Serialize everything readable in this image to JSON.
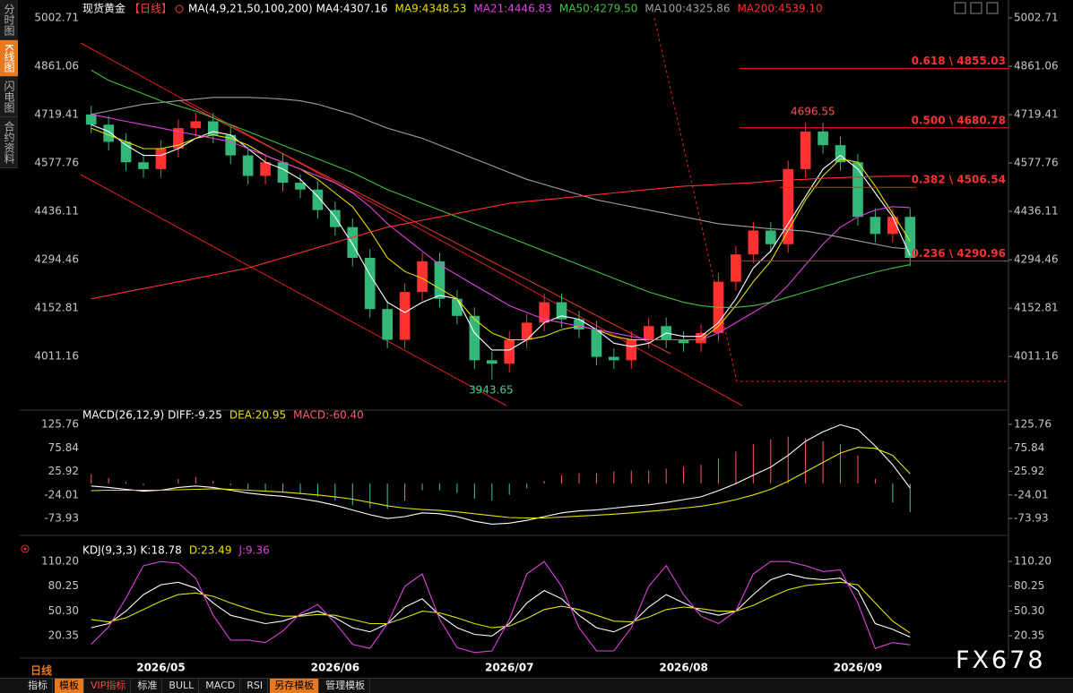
{
  "ui": {
    "tabs": [
      "分时图",
      "K线图",
      "闪电图",
      "合约资料"
    ],
    "period_label": "日线",
    "toolbar": [
      "指标",
      "模板",
      "VIP指标",
      "标准",
      "BULL",
      "MACD",
      "RSI",
      "另存模板",
      "管理模板"
    ],
    "watermark": "FX678"
  },
  "chart_data": [
    {
      "type": "candlestick",
      "title": "现货黄金",
      "period": "【日线】",
      "indicator": "MA(4,9,21,50,100,200)",
      "categories": [
        null,
        null,
        null,
        null,
        "2026/05",
        null,
        null,
        null,
        null,
        null,
        null,
        null,
        null,
        null,
        "2026/06",
        null,
        null,
        null,
        null,
        null,
        null,
        null,
        null,
        null,
        "2026/07",
        null,
        null,
        null,
        null,
        null,
        null,
        null,
        null,
        null,
        "2026/08",
        null,
        null,
        null,
        null,
        null,
        null,
        null,
        null,
        null,
        "2026/09",
        null,
        null,
        null
      ],
      "open": [
        4720,
        4690,
        4640,
        4580,
        4560,
        4620,
        4680,
        4700,
        4660,
        4600,
        4540,
        4580,
        4520,
        4500,
        4440,
        4390,
        4300,
        4150,
        4060,
        4200,
        4290,
        4180,
        4130,
        4000,
        3990,
        4060,
        4110,
        4170,
        4120,
        4090,
        4010,
        4000,
        4060,
        4100,
        4060,
        4050,
        4080,
        4230,
        4310,
        4380,
        4340,
        4560,
        4670,
        4630,
        4580,
        4420,
        4370,
        4420
      ],
      "high": [
        4745,
        4715,
        4665,
        4605,
        4645,
        4705,
        4725,
        4725,
        4685,
        4625,
        4605,
        4605,
        4545,
        4525,
        4465,
        4415,
        4325,
        4175,
        4225,
        4315,
        4315,
        4205,
        4155,
        4025,
        4085,
        4135,
        4195,
        4195,
        4145,
        4115,
        4035,
        4085,
        4125,
        4125,
        4085,
        4105,
        4255,
        4335,
        4405,
        4405,
        4585,
        4696.55,
        4695,
        4655,
        4605,
        4445,
        4445,
        4445
      ],
      "low": [
        4665,
        4615,
        4555,
        4535,
        4535,
        4595,
        4655,
        4635,
        4575,
        4515,
        4515,
        4495,
        4475,
        4415,
        4365,
        4275,
        4125,
        4035,
        4035,
        4175,
        4155,
        4105,
        3975,
        3943.65,
        3965,
        4035,
        4085,
        4095,
        4065,
        3985,
        3975,
        3975,
        4035,
        4035,
        4025,
        4025,
        4055,
        4205,
        4285,
        4315,
        4315,
        4535,
        4605,
        4555,
        4395,
        4345,
        4345,
        4275
      ],
      "close": [
        4690,
        4640,
        4580,
        4560,
        4620,
        4680,
        4700,
        4660,
        4600,
        4540,
        4580,
        4520,
        4500,
        4440,
        4390,
        4300,
        4150,
        4060,
        4200,
        4290,
        4180,
        4130,
        4000,
        3990,
        4060,
        4110,
        4170,
        4120,
        4090,
        4010,
        4000,
        4060,
        4100,
        4060,
        4050,
        4080,
        4230,
        4310,
        4380,
        4340,
        4560,
        4670,
        4630,
        4580,
        4420,
        4370,
        4420,
        4300
      ],
      "up_color": "#ff3232",
      "down_color": "#33b87a",
      "series": [
        {
          "name": "MA4:4307.16",
          "color": "#ffffff",
          "values": [
            4690,
            4670,
            4630,
            4600,
            4600,
            4620,
            4650,
            4670,
            4660,
            4620,
            4580,
            4560,
            4530,
            4480,
            4420,
            4340,
            4250,
            4170,
            4140,
            4170,
            4190,
            4180,
            4080,
            4030,
            4030,
            4060,
            4110,
            4130,
            4120,
            4090,
            4050,
            4040,
            4050,
            4080,
            4070,
            4070,
            4110,
            4180,
            4270,
            4320,
            4400,
            4480,
            4560,
            4600,
            4560,
            4490,
            4420,
            4307
          ]
        },
        {
          "name": "MA9:4348.53",
          "color": "#e8e000",
          "values": [
            4680,
            4660,
            4640,
            4620,
            4620,
            4630,
            4650,
            4660,
            4650,
            4630,
            4600,
            4580,
            4560,
            4530,
            4490,
            4450,
            4380,
            4300,
            4260,
            4240,
            4210,
            4180,
            4120,
            4080,
            4060,
            4060,
            4070,
            4090,
            4100,
            4090,
            4070,
            4060,
            4060,
            4060,
            4060,
            4060,
            4100,
            4160,
            4230,
            4290,
            4380,
            4470,
            4540,
            4590,
            4580,
            4510,
            4430,
            4349
          ]
        },
        {
          "name": "MA21:4446.83",
          "color": "#e040e0",
          "values": [
            4720,
            4710,
            4700,
            4690,
            4680,
            4670,
            4660,
            4650,
            4640,
            4620,
            4600,
            4580,
            4560,
            4540,
            4520,
            4490,
            4450,
            4400,
            4360,
            4320,
            4280,
            4250,
            4220,
            4190,
            4160,
            4140,
            4120,
            4110,
            4100,
            4090,
            4080,
            4070,
            4060,
            4060,
            4060,
            4060,
            4080,
            4110,
            4140,
            4170,
            4220,
            4280,
            4340,
            4390,
            4420,
            4440,
            4450,
            4447
          ]
        },
        {
          "name": "MA50:4279.50",
          "color": "#40c040",
          "values": [
            4850,
            4820,
            4800,
            4780,
            4760,
            4745,
            4730,
            4710,
            4690,
            4670,
            4650,
            4630,
            4610,
            4590,
            4570,
            4550,
            4525,
            4500,
            4480,
            4460,
            4440,
            4420,
            4400,
            4380,
            4360,
            4340,
            4320,
            4300,
            4280,
            4260,
            4240,
            4220,
            4200,
            4185,
            4170,
            4160,
            4155,
            4155,
            4160,
            4170,
            4185,
            4200,
            4215,
            4230,
            4245,
            4258,
            4270,
            4280
          ]
        },
        {
          "name": "MA100:4325.86",
          "color": "#a0a0a0",
          "values": [
            4720,
            4730,
            4740,
            4750,
            4755,
            4760,
            4765,
            4770,
            4770,
            4770,
            4768,
            4765,
            4760,
            4750,
            4735,
            4720,
            4700,
            4680,
            4665,
            4650,
            4630,
            4610,
            4590,
            4570,
            4550,
            4530,
            4515,
            4500,
            4485,
            4470,
            4460,
            4450,
            4440,
            4430,
            4420,
            4410,
            4400,
            4395,
            4390,
            4385,
            4382,
            4378,
            4370,
            4360,
            4350,
            4340,
            4330,
            4326
          ]
        },
        {
          "name": "MA200:4539.10",
          "color": "#ff3030",
          "values": [
            4180,
            4190,
            4200,
            4210,
            4220,
            4230,
            4240,
            4250,
            4260,
            4270,
            4285,
            4300,
            4315,
            4330,
            4345,
            4360,
            4375,
            4390,
            4400,
            4410,
            4420,
            4430,
            4440,
            4450,
            4460,
            4465,
            4470,
            4475,
            4480,
            4485,
            4490,
            4495,
            4500,
            4505,
            4510,
            4512,
            4515,
            4518,
            4520,
            4525,
            4528,
            4530,
            4533,
            4535,
            4537,
            4538,
            4539,
            4539
          ]
        }
      ],
      "levels": [
        {
          "value": 4855.03,
          "label": "0.618 \\ 4855.03"
        },
        {
          "value": 4680.78,
          "label": "0.500 \\ 4680.78"
        },
        {
          "value": 4506.54,
          "label": "0.382 \\ 4506.54"
        },
        {
          "value": 4290.96,
          "label": "0.236 \\ 4290.96"
        }
      ],
      "price_labels": [
        4696.55,
        3943.65
      ],
      "ylim": [
        3862,
        5029
      ],
      "yticks": [
        5002.71,
        4861.06,
        4719.41,
        4577.76,
        4436.11,
        4294.46,
        4152.81,
        4011.16
      ]
    },
    {
      "type": "line",
      "indicator": "MACD(26,12,9)",
      "series": [
        {
          "name": "DIFF:-9.25",
          "color": "#ffffff",
          "values": [
            -5,
            -8,
            -12,
            -16,
            -14,
            -8,
            -5,
            -8,
            -14,
            -20,
            -24,
            -27,
            -32,
            -38,
            -46,
            -56,
            -66,
            -74,
            -70,
            -62,
            -64,
            -70,
            -80,
            -86,
            -84,
            -78,
            -70,
            -62,
            -58,
            -56,
            -52,
            -48,
            -45,
            -40,
            -34,
            -28,
            -15,
            0,
            18,
            35,
            60,
            90,
            110,
            125,
            115,
            80,
            40,
            -9.25
          ]
        },
        {
          "name": "DEA:20.95",
          "color": "#e8e000",
          "values": [
            -15,
            -14,
            -14,
            -14,
            -14,
            -13,
            -12,
            -11,
            -12,
            -14,
            -16,
            -18,
            -21,
            -24,
            -28,
            -33,
            -40,
            -47,
            -52,
            -55,
            -57,
            -60,
            -64,
            -68,
            -72,
            -73,
            -73,
            -71,
            -69,
            -67,
            -65,
            -62,
            -59,
            -56,
            -52,
            -48,
            -42,
            -34,
            -24,
            -12,
            5,
            25,
            45,
            65,
            77,
            75,
            60,
            20.95
          ]
        },
        {
          "name": "MACD:-60.40",
          "type": "bar",
          "color": "#ff5a6a",
          "negative_color": "#3cc8a0",
          "values": [
            20,
            12,
            4,
            -4,
            0,
            10,
            14,
            6,
            -4,
            -12,
            -16,
            -18,
            -22,
            -28,
            -36,
            -46,
            -52,
            -54,
            -36,
            -14,
            -14,
            -20,
            -32,
            -36,
            -24,
            -10,
            6,
            18,
            22,
            22,
            26,
            28,
            28,
            32,
            36,
            40,
            54,
            68,
            84,
            94,
            100,
            96,
            90,
            84,
            60,
            10,
            -40,
            -60.4
          ]
        }
      ],
      "ylim": [
        -94.8,
        142.9
      ],
      "yticks": [
        125.76,
        75.84,
        25.92,
        -24.01,
        -73.93
      ]
    },
    {
      "type": "line",
      "indicator": "KDJ(9,3,3)",
      "series": [
        {
          "name": "K:18.78",
          "color": "#ffffff",
          "values": [
            30,
            35,
            50,
            70,
            82,
            85,
            78,
            60,
            45,
            40,
            35,
            38,
            45,
            50,
            42,
            30,
            25,
            35,
            55,
            65,
            45,
            30,
            22,
            20,
            35,
            60,
            75,
            65,
            45,
            30,
            25,
            35,
            55,
            70,
            60,
            50,
            45,
            50,
            70,
            88,
            95,
            90,
            88,
            90,
            75,
            35,
            28,
            18.78
          ]
        },
        {
          "name": "D:23.49",
          "color": "#e8e000",
          "values": [
            40,
            37,
            42,
            52,
            62,
            70,
            72,
            68,
            60,
            53,
            47,
            44,
            44,
            46,
            45,
            40,
            35,
            35,
            42,
            50,
            48,
            42,
            35,
            30,
            32,
            41,
            52,
            56,
            52,
            45,
            38,
            37,
            43,
            52,
            55,
            53,
            50,
            50,
            57,
            67,
            76,
            81,
            83,
            85,
            82,
            60,
            38,
            23.49
          ]
        },
        {
          "name": "J:9.36",
          "color": "#e040e0",
          "values": [
            10,
            31,
            66,
            105,
            110,
            108,
            90,
            45,
            15,
            15,
            12,
            26,
            47,
            58,
            36,
            10,
            5,
            35,
            80,
            95,
            40,
            6,
            0,
            2,
            40,
            95,
            110,
            80,
            30,
            2,
            2,
            30,
            80,
            105,
            70,
            44,
            35,
            50,
            95,
            110,
            110,
            105,
            98,
            100,
            60,
            5,
            12,
            9.36
          ]
        }
      ],
      "ylim": [
        -1.3,
        123.2
      ],
      "yticks": [
        {
          "value": 110.2,
          "label": "110.20"
        },
        80.25,
        {
          "value": 50.3,
          "label": "50.30"
        },
        20.35
      ]
    }
  ]
}
